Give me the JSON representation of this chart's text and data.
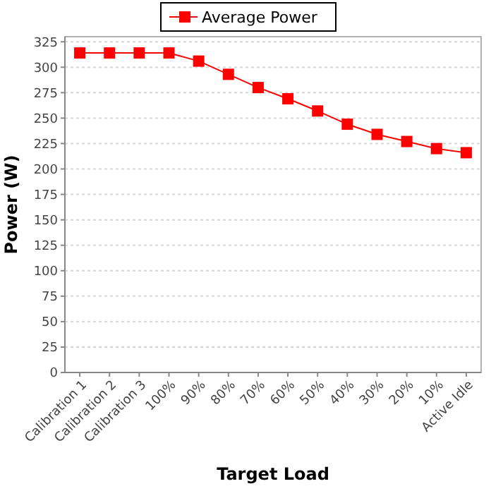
{
  "chart_data": {
    "type": "line",
    "xlabel": "Target Load",
    "ylabel": "Power (W)",
    "categories": [
      "Calibration 1",
      "Calibration 2",
      "Calibration 3",
      "100%",
      "90%",
      "80%",
      "70%",
      "60%",
      "50%",
      "40%",
      "30%",
      "20%",
      "10%",
      "Active Idle"
    ],
    "series": [
      {
        "name": "Average Power",
        "color": "#ff0000",
        "values": [
          314,
          314,
          314,
          314,
          306,
          293,
          280,
          269,
          257,
          244,
          234,
          227,
          220,
          216
        ]
      }
    ],
    "ylim": [
      0,
      330
    ],
    "yticks": [
      0,
      25,
      50,
      75,
      100,
      125,
      150,
      175,
      200,
      225,
      250,
      275,
      300,
      325
    ],
    "grid": "y",
    "legend": "top",
    "marker": "square",
    "line_style": "solid"
  }
}
